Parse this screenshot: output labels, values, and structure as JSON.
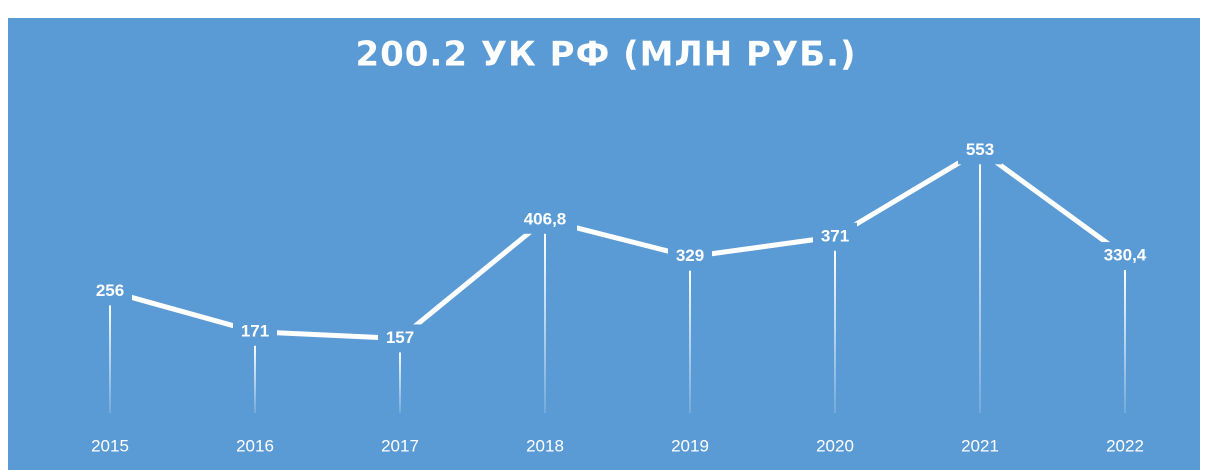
{
  "chart_data": {
    "type": "line",
    "title": "200.2 УК РФ (МЛН РУБ.)",
    "categories": [
      "2015",
      "2016",
      "2017",
      "2018",
      "2019",
      "2020",
      "2021",
      "2022"
    ],
    "values": [
      256,
      171,
      157,
      406.8,
      329,
      371,
      553,
      330.4
    ],
    "value_labels": [
      "256",
      "171",
      "157",
      "406,8",
      "329",
      "371",
      "553",
      "330,4"
    ],
    "color": "#ffffff",
    "background": "#5b9bd5",
    "drop_lines": true,
    "ylim": [
      0,
      600
    ]
  }
}
